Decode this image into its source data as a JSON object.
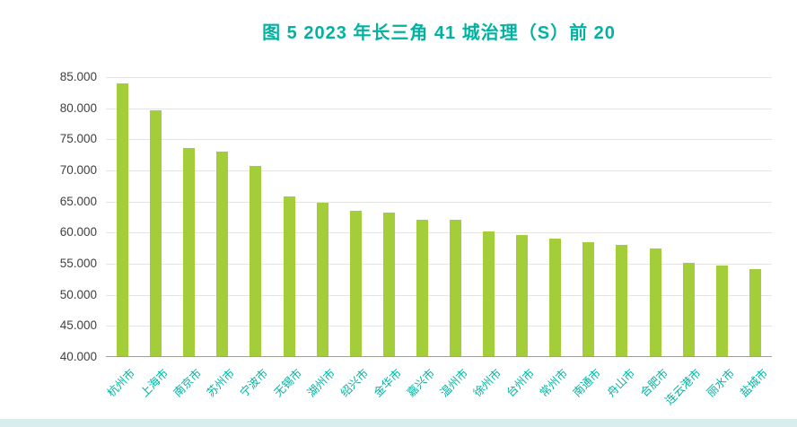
{
  "page": {
    "background": "#ffffff",
    "footer_bar_color": "#d6efed"
  },
  "chart_data": {
    "type": "bar",
    "title": "图 5 2023 年长三角 41 城治理（S）前 20",
    "title_color": "#00b3a1",
    "bar_color": "#a4cd3a",
    "x_label_color": "#00b3a1",
    "y_tick_color": "#3f3f3f",
    "grid": "horizontal",
    "legend": "none",
    "ylim": [
      40,
      85
    ],
    "y_ticks": [
      40,
      45,
      50,
      55,
      60,
      65,
      70,
      75,
      80,
      85
    ],
    "y_tick_labels": [
      "40.000",
      "45.000",
      "50.000",
      "55.000",
      "60.000",
      "65.000",
      "70.000",
      "75.000",
      "80.000",
      "85.000"
    ],
    "categories": [
      "杭州市",
      "上海市",
      "南京市",
      "苏州市",
      "宁波市",
      "无锡市",
      "湖州市",
      "绍兴市",
      "金华市",
      "嘉兴市",
      "温州市",
      "徐州市",
      "台州市",
      "常州市",
      "南通市",
      "舟山市",
      "合肥市",
      "连云港市",
      "丽水市",
      "盐城市"
    ],
    "values": [
      84.0,
      79.6,
      73.6,
      73.0,
      70.7,
      65.8,
      64.8,
      63.5,
      63.2,
      62.1,
      62.0,
      60.2,
      59.6,
      59.0,
      58.5,
      58.1,
      57.4,
      55.1,
      54.7,
      54.2
    ]
  }
}
